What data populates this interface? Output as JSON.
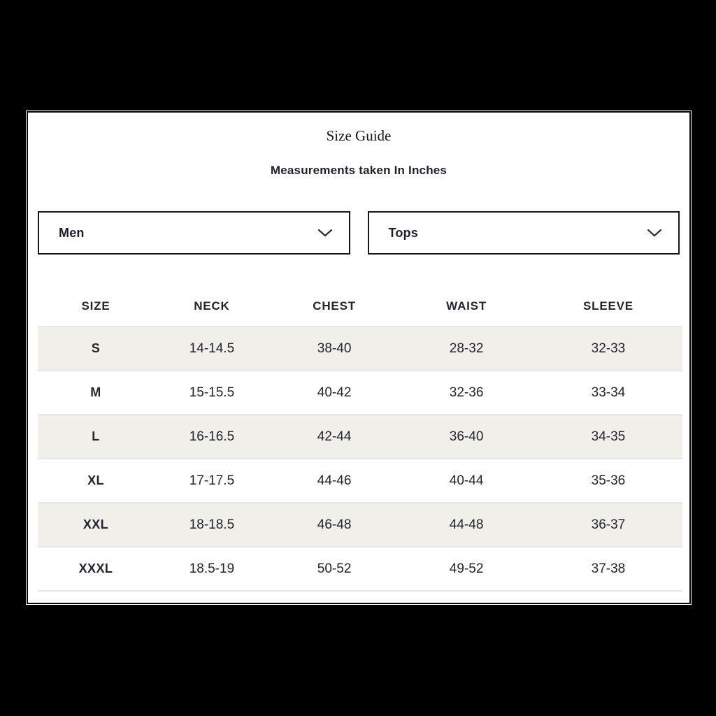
{
  "page": {
    "background_color": "#000000"
  },
  "modal": {
    "title": "Size Guide",
    "subtitle": "Measurements taken In Inches",
    "background_color": "#ffffff",
    "border_color": "#0a0a0a"
  },
  "filters": {
    "gender_select": {
      "value": "Men",
      "icon": "chevron-down-icon"
    },
    "category_select": {
      "value": "Tops",
      "icon": "chevron-down-icon"
    }
  },
  "size_table": {
    "columns": [
      "SIZE",
      "NECK",
      "CHEST",
      "WAIST",
      "SLEEVE"
    ],
    "rows": [
      [
        "S",
        "14-14.5",
        "38-40",
        "28-32",
        "32-33"
      ],
      [
        "M",
        "15-15.5",
        "40-42",
        "32-36",
        "33-34"
      ],
      [
        "L",
        "16-16.5",
        "42-44",
        "36-40",
        "34-35"
      ],
      [
        "XL",
        "17-17.5",
        "44-46",
        "40-44",
        "35-36"
      ],
      [
        "XXL",
        "18-18.5",
        "46-48",
        "44-48",
        "36-37"
      ],
      [
        "XXXL",
        "18.5-19",
        "50-52",
        "49-52",
        "37-38"
      ]
    ],
    "stripe_color": "#f1efe9",
    "divider_color": "#e4e6ea",
    "text_color": "#22252e"
  }
}
